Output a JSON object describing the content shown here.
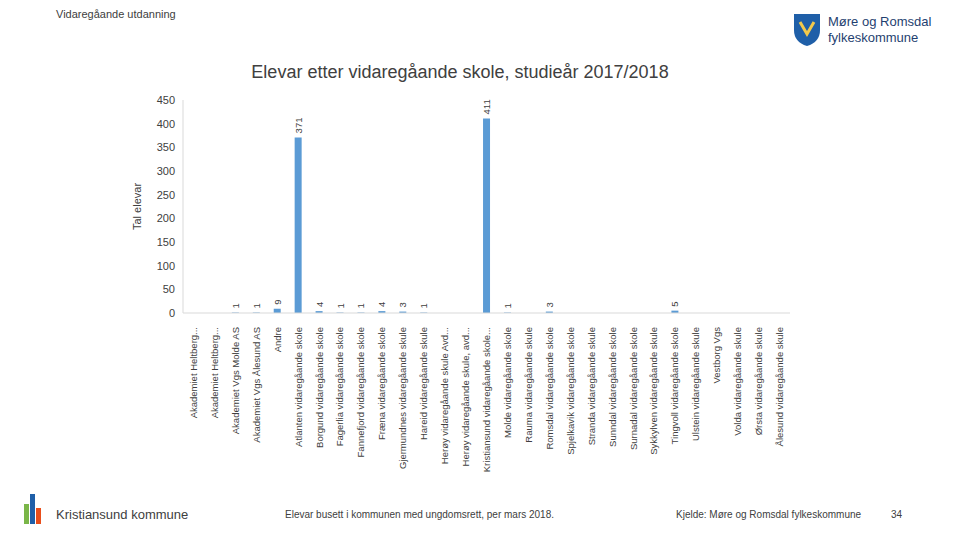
{
  "chart_data": {
    "type": "bar",
    "title": "Elevar etter vidaregåande skole, studieår 2017/2018",
    "y_label": "Tal elevar",
    "categories": [
      "Akademiet Heltberg...",
      "Akademiet Heltberg...",
      "Akademiet Vgs Molde AS",
      "Akademiet Vgs Ålesund AS",
      "Andre",
      "Atlanten vidaregåande skole",
      "Borgund vidaregåande skole",
      "Fagerlia vidaregåande skole",
      "Fannefjord vidaregåande skole",
      "Fræna vidaregåande skole",
      "Gjermundnes vidaregåande skule",
      "Hareid vidaregåande skule",
      "Herøy vidaregåande skule Avd...",
      "Herøy vidaregåande skule, avd...",
      "Kristiansund vidaregåande skole...",
      "Molde vidaregåande skole",
      "Rauma vidaregåande skule",
      "Romsdal vidaregåande skole",
      "Spjelkavik vidaregåande skole",
      "Stranda vidaregåande skule",
      "Sunndal vidaregåande skole",
      "Surnadal vidaregåande skole",
      "Sykkylven vidaregåande skule",
      "Tingvoll vidaregåande skole",
      "Ulstein vidaregåande skule",
      "Vestborg Vgs",
      "Volda vidaregåande skule",
      "Ørsta vidaregåande skule",
      "Ålesund vidaregåande skule"
    ],
    "values": [
      0,
      0,
      1,
      1,
      9,
      371,
      4,
      1,
      1,
      4,
      3,
      1,
      0,
      0,
      411,
      1,
      0,
      3,
      0,
      0,
      0,
      0,
      0,
      5,
      0,
      0,
      0,
      0,
      0
    ],
    "color": "#5b9bd5",
    "ylim": [
      0,
      450
    ],
    "yticks": [
      0,
      50,
      100,
      150,
      200,
      250,
      300,
      350,
      400,
      450
    ],
    "grid": false,
    "data_labels": true
  },
  "page": {
    "header": "Vidaregåande utdanning",
    "logo_line1": "Møre og Romsdal",
    "logo_line2": "fylkeskommune",
    "footer_left": "Kristiansund kommune",
    "footer_note": "Elevar busett i kommunen med ungdomsrett, per mars 2018.",
    "footer_source": "Kjelde: Møre og Romsdal fylkeskommune",
    "page_number": "34"
  }
}
